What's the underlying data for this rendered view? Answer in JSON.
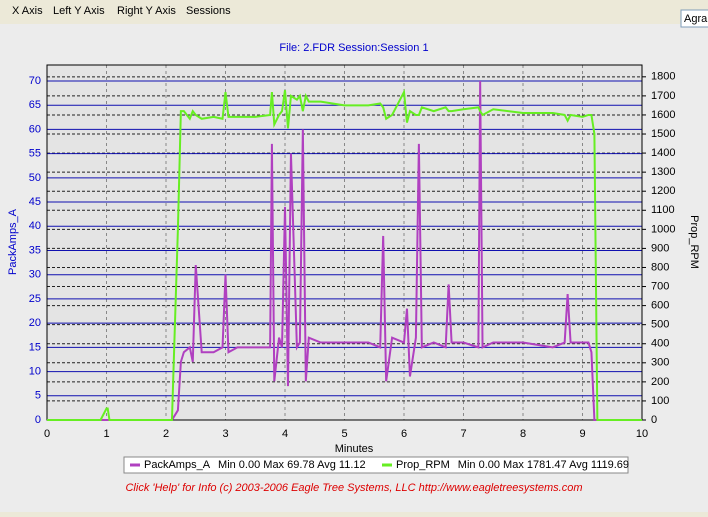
{
  "menu": [
    "X Axis",
    "Left Y Axis",
    "Right Y Axis",
    "Sessions"
  ],
  "toolbar_box": "Agra",
  "chart_data": {
    "type": "line",
    "title": "File: 2.FDR   Session:Session 1",
    "x_label": "Minutes",
    "y_label": "PackAmps_A",
    "y2_label": "Prop_RPM",
    "x": [
      0,
      0.9,
      1.0,
      1.02,
      1.05,
      2.0,
      2.1,
      2.2,
      2.25,
      2.3,
      2.4,
      2.45,
      2.5,
      2.6,
      2.8,
      2.95,
      3.0,
      3.05,
      3.2,
      3.5,
      3.75,
      3.78,
      3.82,
      3.9,
      3.95,
      4.0,
      4.05,
      4.1,
      4.2,
      4.25,
      4.3,
      4.35,
      4.4,
      4.6,
      5.0,
      5.4,
      5.6,
      5.65,
      5.7,
      5.8,
      6.0,
      6.05,
      6.1,
      6.2,
      6.25,
      6.3,
      6.5,
      6.7,
      6.75,
      6.8,
      7.0,
      7.25,
      7.28,
      7.32,
      7.5,
      8.0,
      8.5,
      8.7,
      8.75,
      8.8,
      9.0,
      9.1,
      9.15,
      9.2,
      9.25,
      10
    ],
    "series": [
      {
        "name": "PackAmps_A",
        "stats": "Min 0.00 Max 69.78 Avg 11.12",
        "color": "#b040c0",
        "axis": "y",
        "values": [
          0,
          0,
          0,
          0,
          0,
          0,
          0,
          2,
          12,
          14,
          15,
          12,
          32,
          14,
          14,
          15,
          30,
          14,
          15,
          15,
          15,
          57,
          8,
          17,
          15,
          44,
          7,
          55,
          15,
          16,
          60,
          8,
          17,
          16,
          16,
          16,
          15,
          38,
          8,
          17,
          16,
          23,
          9,
          17,
          57,
          15,
          16,
          15,
          28,
          16,
          16,
          15,
          70,
          15,
          16,
          16,
          15,
          16,
          26,
          16,
          16,
          16,
          14,
          0,
          0,
          0
        ]
      },
      {
        "name": "Prop_RPM",
        "stats": "Min 0.00 Max 1781.47 Avg 1119.69",
        "color": "#66ee22",
        "axis": "y2",
        "values": [
          0,
          0,
          60,
          60,
          0,
          0,
          0,
          1000,
          1620,
          1620,
          1580,
          1620,
          1600,
          1580,
          1590,
          1580,
          1720,
          1590,
          1590,
          1590,
          1600,
          1720,
          1550,
          1600,
          1620,
          1730,
          1530,
          1700,
          1680,
          1700,
          1620,
          1700,
          1670,
          1670,
          1650,
          1650,
          1660,
          1640,
          1580,
          1600,
          1720,
          1560,
          1620,
          1600,
          1600,
          1640,
          1620,
          1640,
          1620,
          1620,
          1630,
          1640,
          1620,
          1600,
          1630,
          1610,
          1610,
          1600,
          1570,
          1600,
          1590,
          1600,
          1600,
          1500,
          0,
          0
        ]
      }
    ],
    "xlim": [
      0,
      10
    ],
    "xticks": [
      0,
      1,
      2,
      3,
      4,
      5,
      6,
      7,
      8,
      9,
      10
    ],
    "ylim": [
      0,
      73.3
    ],
    "yticks": [
      0,
      5,
      10,
      15,
      20,
      25,
      30,
      35,
      40,
      45,
      50,
      55,
      60,
      65,
      70
    ],
    "y2lim": [
      0,
      1862
    ],
    "y2ticks": [
      0,
      100,
      200,
      300,
      400,
      500,
      600,
      700,
      800,
      900,
      1000,
      1100,
      1200,
      1300,
      1400,
      1500,
      1600,
      1700,
      1800
    ],
    "grid": true,
    "footer": "Click 'Help' for Info  (c) 2003-2006 Eagle Tree Systems, LLC     http://www.eagletreesystems.com"
  }
}
